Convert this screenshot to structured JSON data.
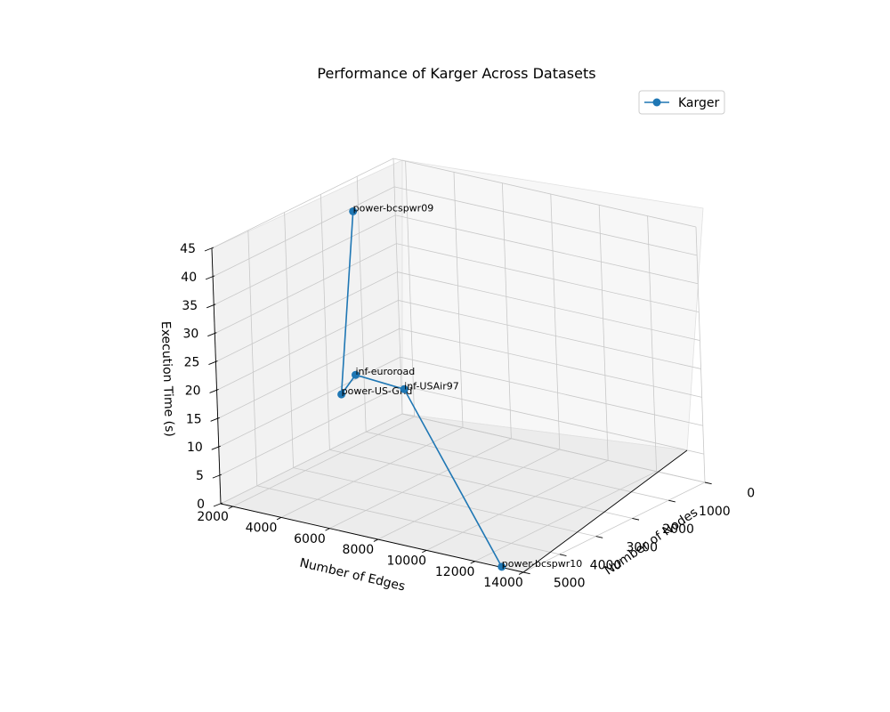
{
  "chart_data": {
    "type": "line3d",
    "title": "Performance of Karger Across Datasets",
    "xlabel": "Number of Nodes",
    "ylabel": "Number of Edges",
    "zlabel": "Execution Time (s)",
    "xlim": [
      0,
      5000
    ],
    "ylim": [
      1500,
      14000
    ],
    "zlim": [
      0,
      45
    ],
    "xticks": [
      0,
      1000,
      2000,
      3000,
      4000,
      5000
    ],
    "yticks": [
      2000,
      4000,
      6000,
      8000,
      10000,
      12000,
      14000
    ],
    "zticks": [
      0,
      5,
      10,
      15,
      20,
      25,
      30,
      35,
      40,
      45
    ],
    "legend": {
      "position": "top-right",
      "entries": [
        "Karger"
      ]
    },
    "color": "#1f77b4",
    "series": [
      {
        "name": "Karger",
        "points": [
          {
            "label": "power-bcspwr09",
            "nodes": 1723,
            "edges": 2394,
            "time": 42.0
          },
          {
            "label": "power-US-Grid",
            "nodes": 4941,
            "edges": 6594,
            "time": 24.0
          },
          {
            "label": "inf-euroroad",
            "nodes": 1174,
            "edges": 1417,
            "time": 10.5
          },
          {
            "label": "inf-USAir97",
            "nodes": 332,
            "edges": 2126,
            "time": 6.0
          },
          {
            "label": "power-bcspwr10",
            "nodes": 5300,
            "edges": 13571,
            "time": 1.5
          }
        ]
      }
    ]
  }
}
